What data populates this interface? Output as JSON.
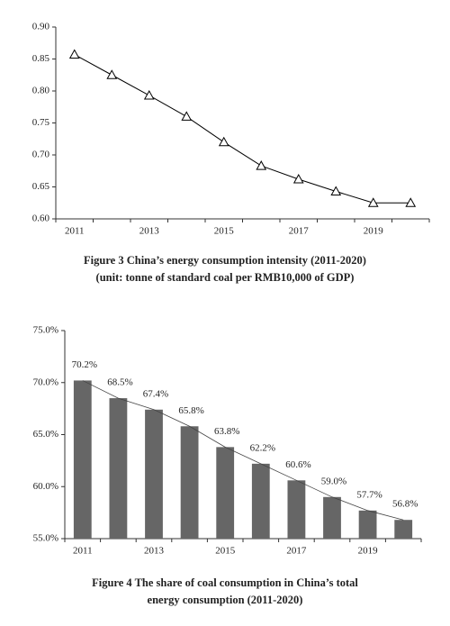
{
  "chart_data": [
    {
      "type": "line",
      "title": [
        "Figure 3    China’s energy consumption intensity (2011-2020)",
        "(unit: tonne of standard coal per RMB10,000 of GDP)"
      ],
      "categories": [
        "2011",
        null,
        "2013",
        null,
        "2015",
        null,
        "2017",
        null,
        "2019",
        null
      ],
      "values": [
        0.857,
        0.825,
        0.793,
        0.76,
        0.72,
        0.683,
        0.662,
        0.643,
        0.625,
        0.625
      ],
      "color": "#000000",
      "ylim": [
        0.6,
        0.9
      ],
      "yticks": [
        {
          "value": 0.6,
          "label": "0.60"
        },
        {
          "value": 0.65,
          "label": "0.65"
        },
        {
          "value": 0.7,
          "label": "0.70"
        },
        {
          "value": 0.75,
          "label": "0.75"
        },
        {
          "value": 0.8,
          "label": "0.80"
        },
        {
          "value": 0.85,
          "label": "0.85"
        },
        {
          "value": 0.9,
          "label": "0.90"
        }
      ],
      "grid": false
    },
    {
      "type": "bar",
      "title": [
        "Figure 4    The share of coal consumption in China’s total",
        "energy consumption (2011-2020)"
      ],
      "categories": [
        "2011",
        null,
        "2013",
        null,
        "2015",
        null,
        "2017",
        null,
        "2019",
        null
      ],
      "values": [
        70.2,
        68.5,
        67.4,
        65.8,
        63.8,
        62.2,
        60.6,
        59.0,
        57.7,
        56.8
      ],
      "value_labels": [
        "70.2%",
        "68.5%",
        "67.4%",
        "65.8%",
        "63.8%",
        "62.2%",
        "60.6%",
        "59.0%",
        "57.7%",
        "56.8%"
      ],
      "color": "#666666",
      "ylim": [
        55,
        75
      ],
      "yticks": [
        {
          "value": 55,
          "label": "55.0%"
        },
        {
          "value": 60,
          "label": "60.0%"
        },
        {
          "value": 65,
          "label": "65.0%"
        },
        {
          "value": 70,
          "label": "70.0%"
        },
        {
          "value": 75,
          "label": "75.0%"
        }
      ],
      "grid": false
    }
  ]
}
